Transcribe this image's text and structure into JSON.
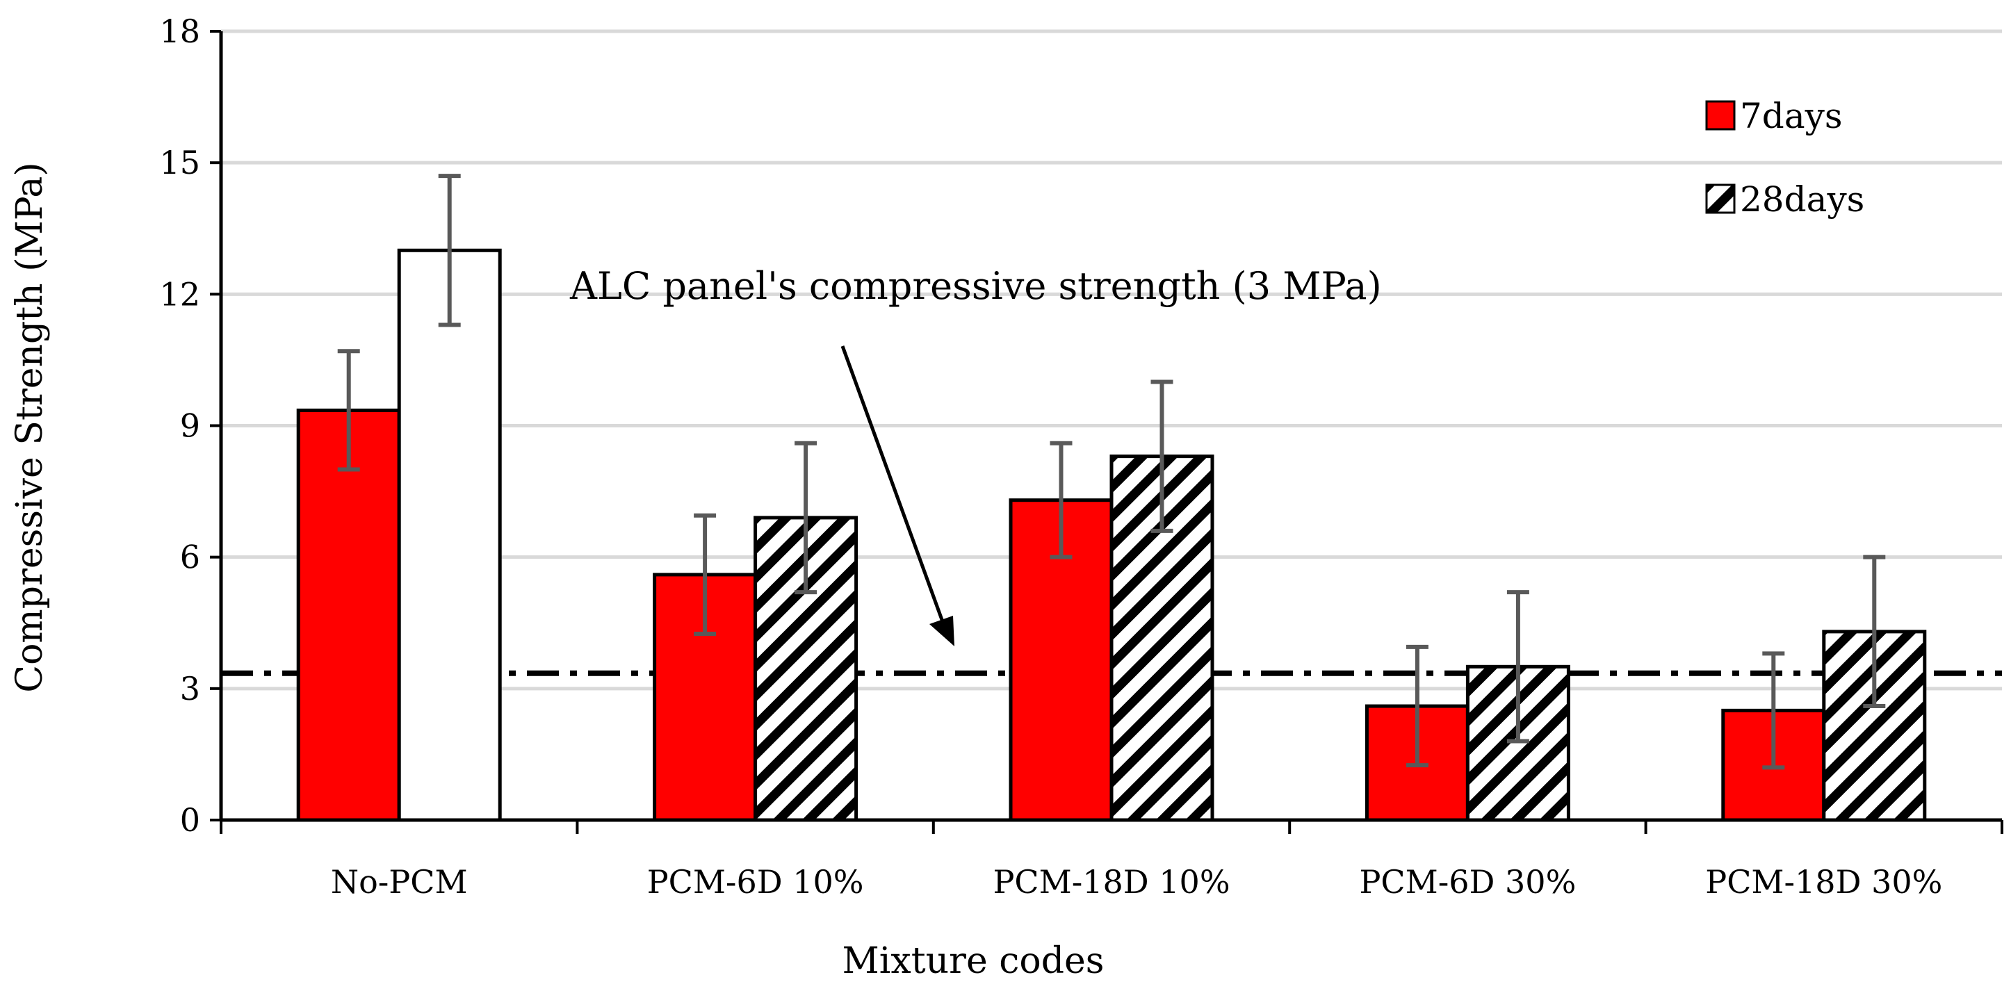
{
  "chart_data": {
    "type": "bar",
    "title": "",
    "xlabel": "Mixture codes",
    "ylabel": "Compressive Strength (MPa)",
    "ylim": [
      0,
      18
    ],
    "yticks": [
      0,
      3,
      6,
      9,
      12,
      15,
      18
    ],
    "grid": true,
    "legend_position": "top-right",
    "categories": [
      "No-PCM",
      "PCM-6D 10%",
      "PCM-18D 10%",
      "PCM-6D 30%",
      "PCM-18D 30%"
    ],
    "series": [
      {
        "name": "7days",
        "fill": "solid",
        "values": [
          9.35,
          5.6,
          7.3,
          2.6,
          2.5
        ],
        "error_low": [
          8.0,
          4.25,
          6.0,
          1.25,
          1.2
        ],
        "error_high": [
          10.7,
          6.95,
          8.6,
          3.95,
          3.8
        ]
      },
      {
        "name": "28days",
        "fill": "hatched",
        "values": [
          13.0,
          6.9,
          8.3,
          3.5,
          4.3
        ],
        "error_low": [
          11.3,
          5.2,
          6.6,
          1.8,
          2.6
        ],
        "error_high": [
          14.7,
          8.6,
          10.0,
          5.2,
          6.0
        ]
      }
    ],
    "reference_line": {
      "value": 3.35,
      "style": "dash-dot",
      "label": "ALC panel's compressive strength (3 MPa)"
    },
    "colors": {
      "series_7days": "#ff0000",
      "series_28days": "#ffffff",
      "hatch": "#000000",
      "bar_outline": "#000000",
      "error_bar": "#595959",
      "grid": "#d9d9d9",
      "axis": "#000000"
    }
  }
}
